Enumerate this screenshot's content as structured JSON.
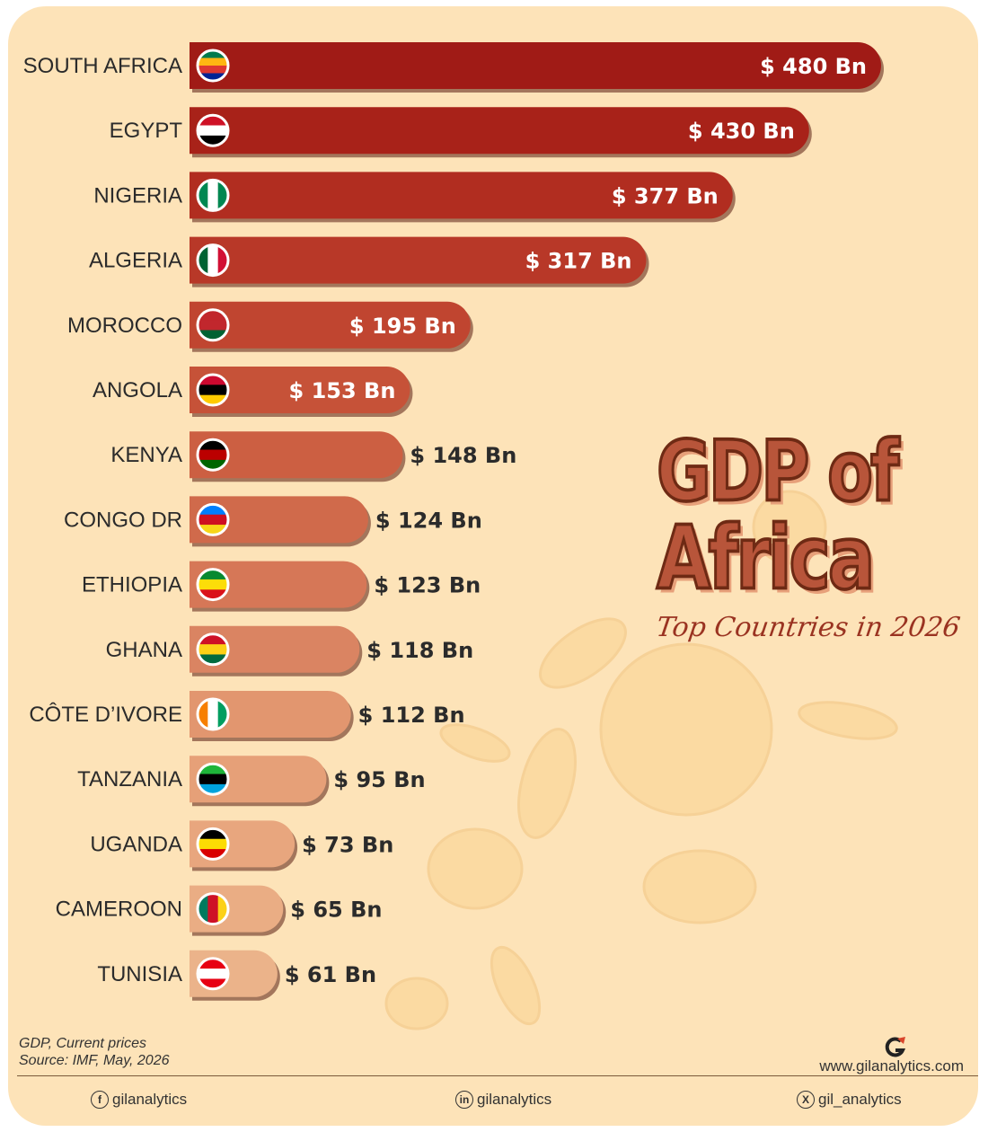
{
  "chart_data": {
    "type": "bar",
    "orientation": "horizontal",
    "title": "GDP of Africa",
    "subtitle": "Top Countries in 2026",
    "categories": [
      "SOUTH AFRICA",
      "EGYPT",
      "NIGERIA",
      "ALGERIA",
      "MOROCCO",
      "ANGOLA",
      "KENYA",
      "CONGO DR",
      "ETHIOPIA",
      "GHANA",
      "CÔTE D’IVORE",
      "TANZANIA",
      "UGANDA",
      "CAMEROON",
      "TUNISIA"
    ],
    "values": [
      480,
      430,
      377,
      317,
      195,
      153,
      148,
      124,
      123,
      118,
      112,
      95,
      73,
      65,
      61
    ],
    "value_labels": [
      "$ 480 Bn",
      "$ 430 Bn",
      "$ 377 Bn",
      "$ 317 Bn",
      "$ 195 Bn",
      "$ 153 Bn",
      "$ 148 Bn",
      "$ 124 Bn",
      "$ 123 Bn",
      "$ 118 Bn",
      "$ 112 Bn",
      "$ 95 Bn",
      "$ 73 Bn",
      "$ 65 Bn",
      "$ 61 Bn"
    ],
    "flags": [
      "south-africa-flag-icon",
      "egypt-flag-icon",
      "nigeria-flag-icon",
      "algeria-flag-icon",
      "morocco-flag-icon",
      "angola-flag-icon",
      "kenya-flag-icon",
      "congo-dr-flag-icon",
      "ethiopia-flag-icon",
      "ghana-flag-icon",
      "cote-divoire-flag-icon",
      "tanzania-flag-icon",
      "uganda-flag-icon",
      "cameroon-flag-icon",
      "tunisia-flag-icon"
    ],
    "bar_colors": [
      "#a01b16",
      "#a82219",
      "#b12d20",
      "#b83828",
      "#c04530",
      "#c65238",
      "#cc5f42",
      "#d06a4b",
      "#d67757",
      "#da8462",
      "#e2966f",
      "#e6a078",
      "#e8a67e",
      "#eaad84",
      "#ebb38a"
    ],
    "value_label_position": "inside-end for larger bars, outside-end for smaller bars"
  },
  "footer": {
    "note_line1": "GDP, Current prices",
    "note_line2": "Source: IMF, May, 2026",
    "website": "www.gilanalytics.com",
    "facebook": "gilanalytics",
    "linkedin": "gilanalytics",
    "x": "gil_analytics"
  },
  "colors": {
    "background": "#fde3b8",
    "title": "#b8553a",
    "subtitle": "#9a3321"
  }
}
